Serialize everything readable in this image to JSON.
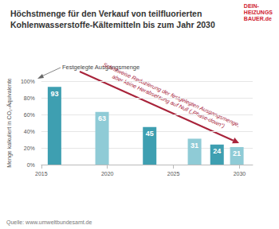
{
  "chart_data": {
    "type": "bar",
    "title": "Höchstmenge für den Verkauf von teilfluorierten\nKohlenwasserstoffe-Kältemitteln bis zum Jahr 2030",
    "logo": [
      "DEIN-",
      "HEIZUNGS",
      "BAUER.de"
    ],
    "y_label": "Menge kalkuliert in CO₂-Äquivalente",
    "x": [
      2016,
      2019.6,
      2023.2,
      2026.6,
      2028.3,
      2029.8
    ],
    "values": [
      93,
      63,
      45,
      31,
      24,
      21
    ],
    "colors": [
      "#3e9fb1",
      "#8fcbd6",
      "#3e9fb1",
      "#8fcbd6",
      "#3e9fb1",
      "#8fcbd6"
    ],
    "data_labels": true,
    "xlim": [
      2015,
      2031
    ],
    "xticks": [
      2015,
      2020,
      2025,
      2030
    ],
    "ylim": [
      0,
      100
    ],
    "yticks": [
      {
        "value": 0,
        "label": "0%"
      },
      {
        "value": 20,
        "label": "20%"
      },
      {
        "value": 40,
        "label": "40%"
      },
      {
        "value": 60,
        "label": "60%"
      },
      {
        "value": 80,
        "label": "80%"
      },
      {
        "value": 100,
        "label": "100%"
      }
    ],
    "grid": true,
    "annotations": {
      "baseline_note": "Festgelegte Ausgangsmenge",
      "trend_note": [
        "Schrittweise Reduzierung der festgelegten Ausgangsmenge,",
        "aber keine Herabsetzung auf Null („Phase-down“)"
      ]
    },
    "source": "Quelle: www.umweltbundesamt.de"
  }
}
